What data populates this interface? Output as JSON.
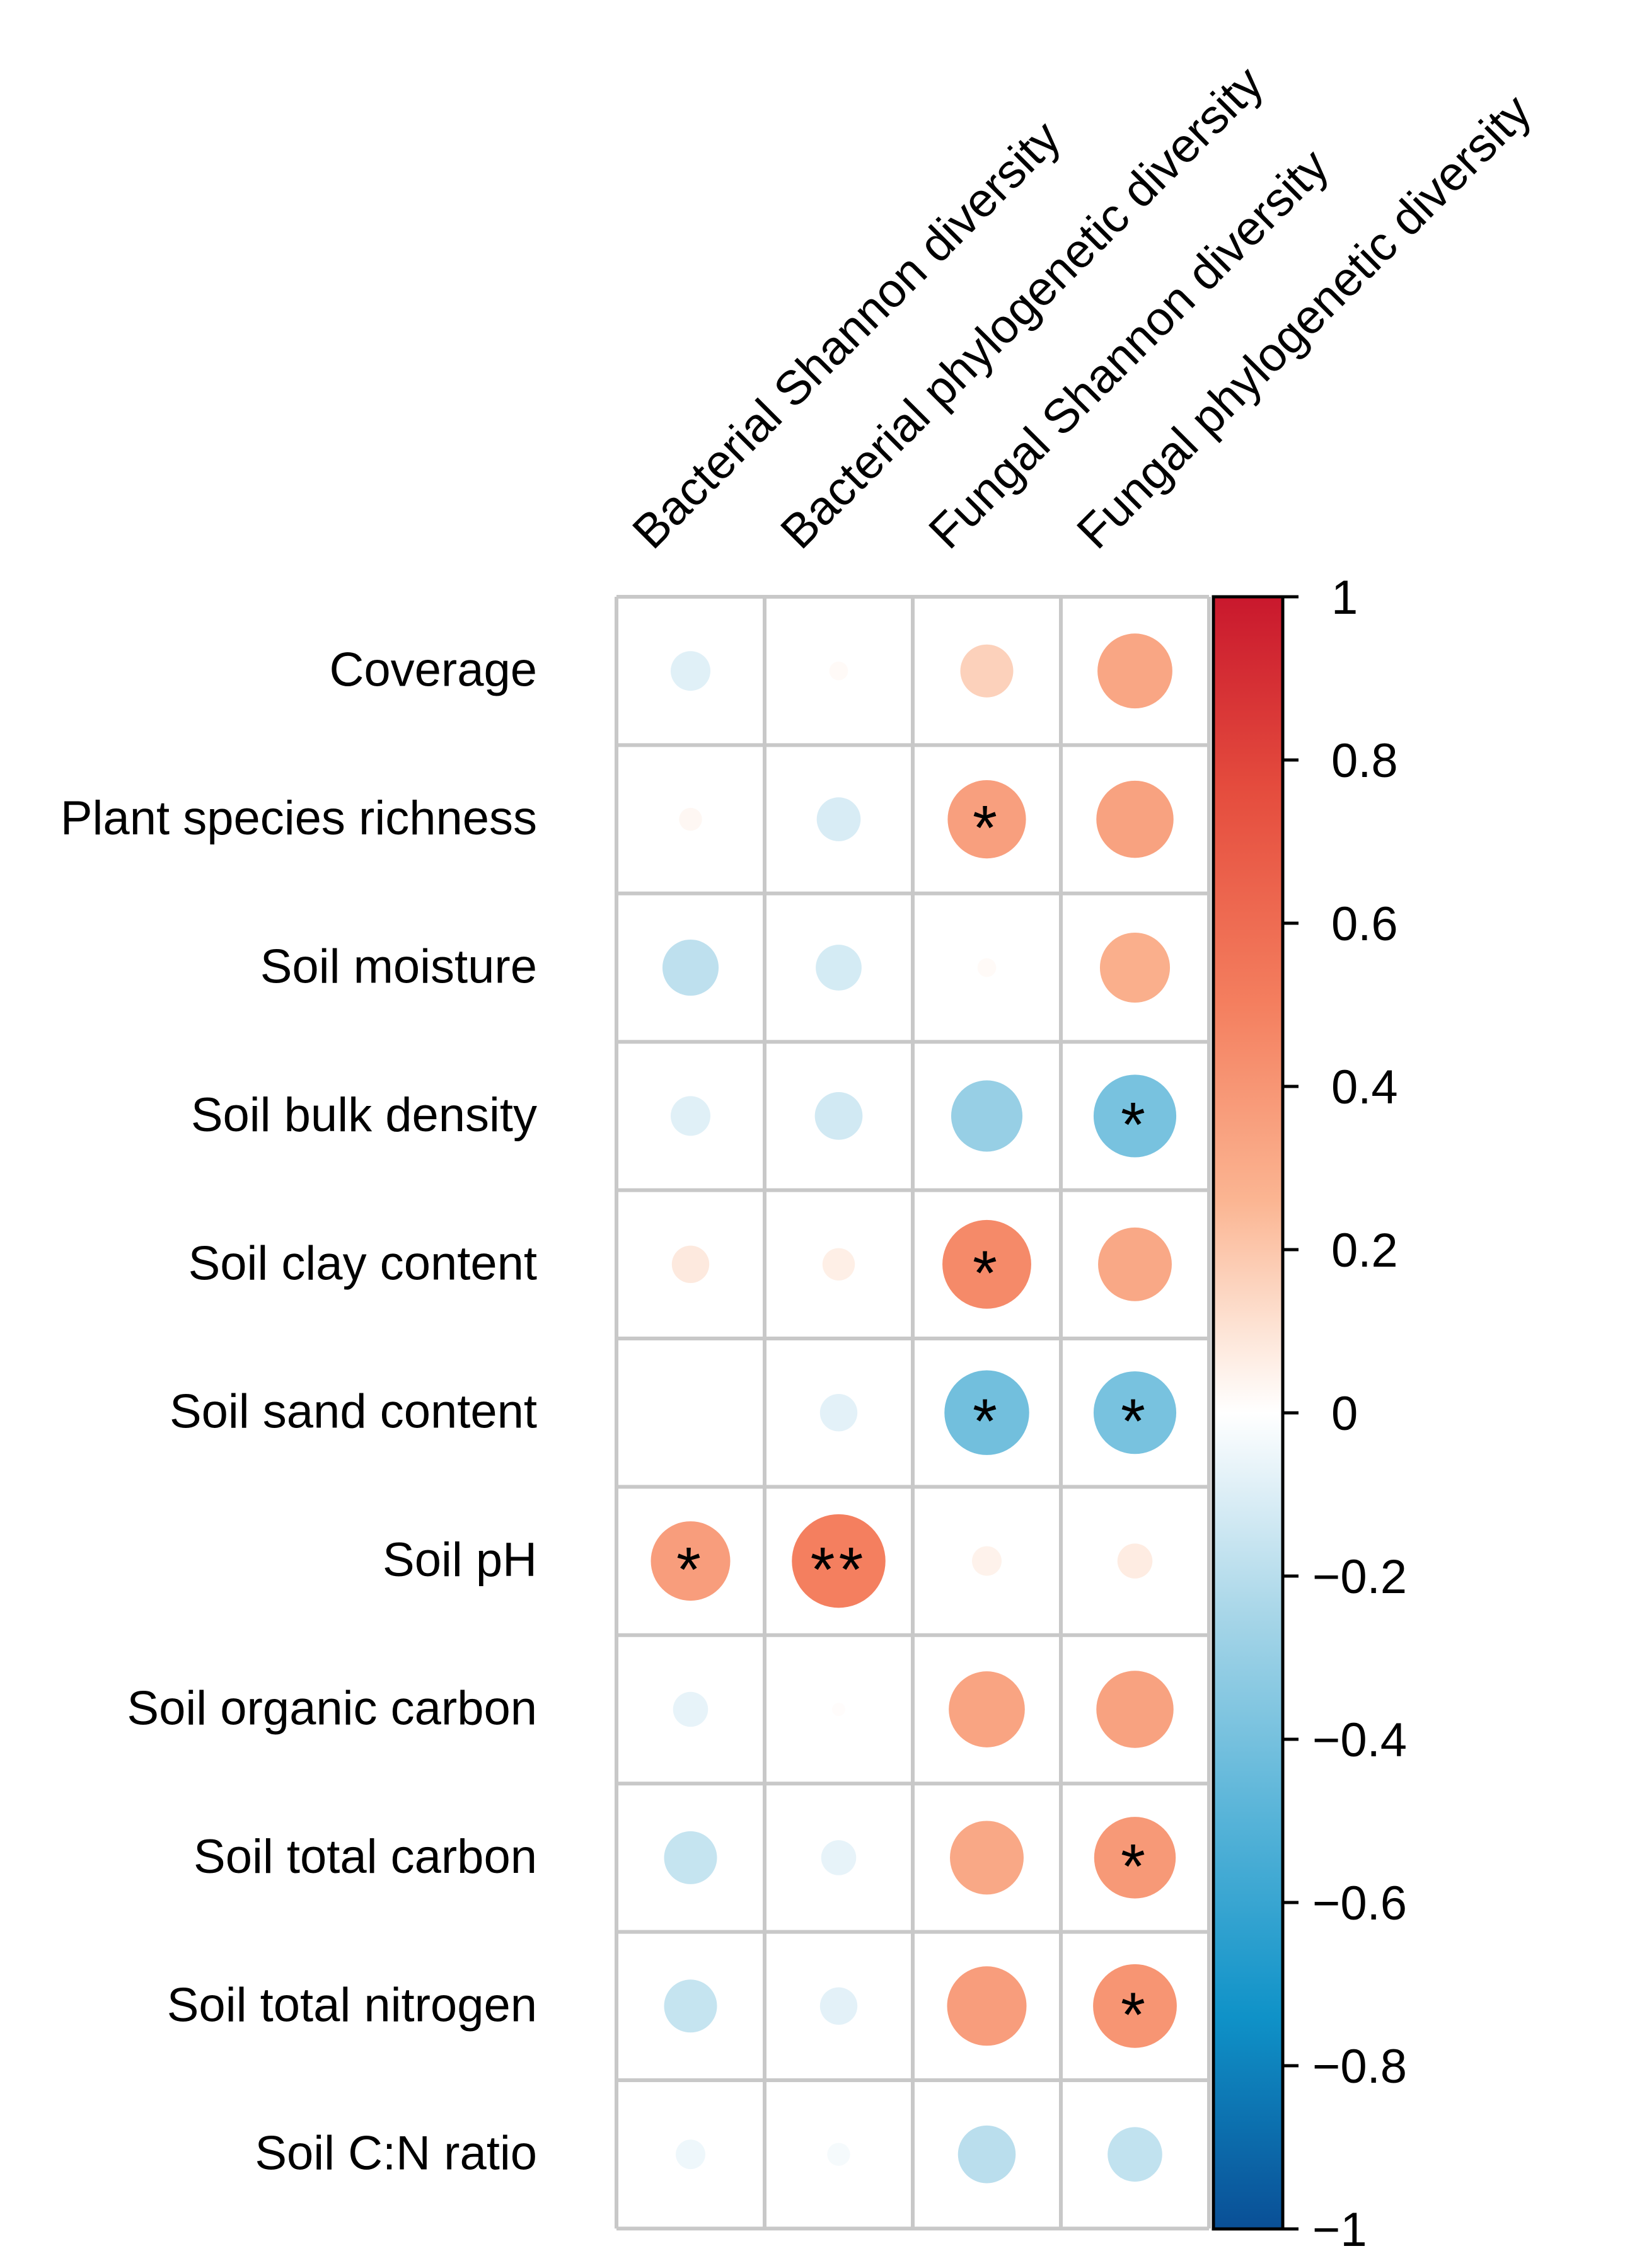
{
  "chart_data": {
    "type": "heatmap",
    "style": "correlation-circles",
    "columns": [
      "Bacterial Shannon diversity",
      "Bacterial phylogenetic diversity",
      "Fungal Shannon diversity",
      "Fungal phylogenetic diversity"
    ],
    "rows": [
      "Coverage",
      "Plant species richness",
      "Soil moisture",
      "Soil bulk density",
      "Soil clay content",
      "Soil sand content",
      "Soil pH",
      "Soil organic carbon",
      "Soil total carbon",
      "Soil total nitrogen",
      "Soil C:N ratio"
    ],
    "values": [
      [
        -0.09,
        0.02,
        0.16,
        0.32
      ],
      [
        0.03,
        -0.11,
        0.35,
        0.34
      ],
      [
        -0.18,
        -0.12,
        0.02,
        0.28
      ],
      [
        -0.09,
        -0.13,
        -0.29,
        -0.39
      ],
      [
        0.08,
        0.06,
        0.45,
        0.31
      ],
      [
        0.0,
        -0.08,
        -0.41,
        -0.39
      ],
      [
        0.36,
        0.5,
        0.05,
        0.07
      ],
      [
        -0.07,
        0.01,
        0.33,
        0.34
      ],
      [
        -0.16,
        -0.07,
        0.31,
        0.38
      ],
      [
        -0.16,
        -0.08,
        0.36,
        0.4
      ],
      [
        -0.05,
        -0.03,
        -0.19,
        -0.17
      ]
    ],
    "significance": [
      [
        "",
        "",
        "",
        ""
      ],
      [
        "",
        "",
        "*",
        ""
      ],
      [
        "",
        "",
        "",
        ""
      ],
      [
        "",
        "",
        "",
        "*"
      ],
      [
        "",
        "",
        "*",
        ""
      ],
      [
        "",
        "",
        "*",
        "*"
      ],
      [
        "*",
        "**",
        "",
        ""
      ],
      [
        "",
        "",
        "",
        ""
      ],
      [
        "",
        "",
        "",
        "*"
      ],
      [
        "",
        "",
        "",
        "*"
      ],
      [
        "",
        "",
        "",
        ""
      ]
    ],
    "colorbar": {
      "range": [
        -1,
        1
      ],
      "ticks": [
        1,
        0.8,
        0.6,
        0.4,
        0.2,
        0,
        -0.2,
        -0.4,
        -0.6,
        -0.8,
        -1
      ],
      "tick_labels": [
        "1",
        "0.8",
        "0.6",
        "0.4",
        "0.2",
        "0",
        "−0.2",
        "−0.4",
        "−0.6",
        "−0.8",
        "−1"
      ],
      "colors": [
        "#053061",
        "#2166ac",
        "#4393c3",
        "#92c5de",
        "#d1e5f0",
        "#ffffff",
        "#fddbc7",
        "#f4a582",
        "#d6604d",
        "#b2182b",
        "#67001f"
      ]
    }
  }
}
